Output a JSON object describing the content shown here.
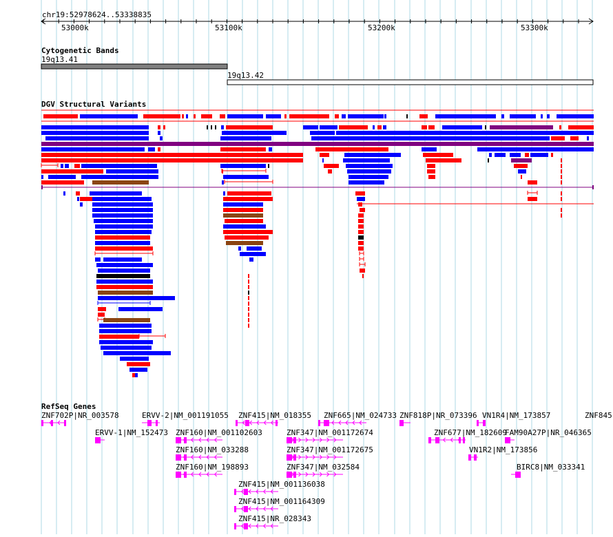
{
  "ruler": {
    "location": "chr19:52978624..53338835",
    "ticks": [
      "53000k",
      "53100k",
      "53200k",
      "53300k"
    ]
  },
  "tracks": {
    "cyto": {
      "title": "Cytogenetic Bands",
      "bands": [
        {
          "label": "19q13.41",
          "fill": "#808080"
        },
        {
          "label": "19q13.42",
          "fill": "#ffffff"
        }
      ]
    },
    "dgv": {
      "title": "DGV Structural Variants"
    },
    "refseq": {
      "title": "RefSeq Genes",
      "genes": [
        {
          "label": "ZNF702P|NR_003578"
        },
        {
          "label": "ERVV-2|NM_001191055"
        },
        {
          "label": "ZNF415|NM_018355"
        },
        {
          "label": "ZNF665|NM_024733"
        },
        {
          "label": "ZNF818P|NR_073396"
        },
        {
          "label": "VN1R4|NM_173857"
        },
        {
          "label": "ZNF845|"
        },
        {
          "label": "ERVV-1|NM_152473"
        },
        {
          "label": "ZNF160|NM_001102603"
        },
        {
          "label": "ZNF347|NM_001172674"
        },
        {
          "label": "ZNF677|NM_182609"
        },
        {
          "label": "FAM90A27P|NR_046365"
        },
        {
          "label": "ZNF160|NM_033288"
        },
        {
          "label": "ZNF347|NM_001172675"
        },
        {
          "label": "VN1R2|NM_173856"
        },
        {
          "label": "ZNF160|NM_198893"
        },
        {
          "label": "ZNF347|NM_032584"
        },
        {
          "label": "BIRC8|NM_033341"
        },
        {
          "label": "ZNF415|NM_001136038"
        },
        {
          "label": "ZNF415|NM_001164309"
        },
        {
          "label": "ZNF415|NR_028343"
        }
      ]
    }
  },
  "colors": {
    "gain": "#ff0000",
    "loss": "#0000ff",
    "gain_loss": "#8b4513",
    "inversion": "#800080",
    "complex": "#000000",
    "gene": "#ff00ff",
    "grid": "#add8e6"
  }
}
